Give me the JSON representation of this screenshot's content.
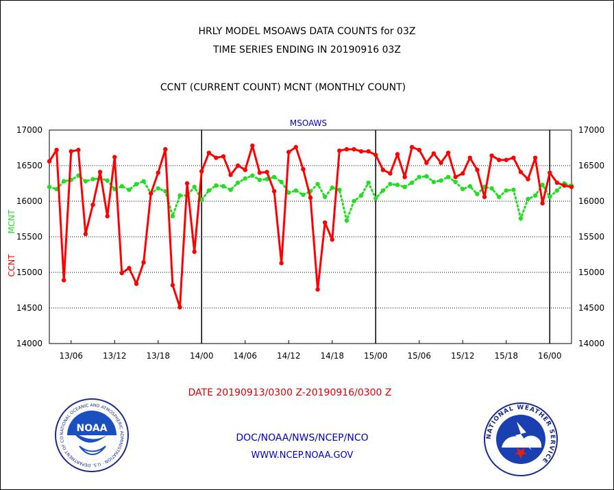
{
  "header": {
    "title_line1": "HRLY MODEL MSOAWS DATA COUNTS for 03Z",
    "title_line2": "TIME SERIES ENDING IN 20190916 03Z",
    "subtitle": "CCNT (CURRENT COUNT) MCNT (MONTHLY COUNT)"
  },
  "footer": {
    "date_range": "DATE 20190913/0300 Z-20190916/0300 Z",
    "org_path": "DOC/NOAA/NWS/NCEP/NCO",
    "website": "WWW.NCEP.NOAA.GOV"
  },
  "logos": {
    "noaa_text": "NOAA",
    "noaa_ring": "NATIONAL OCEANIC AND ATMOSPHERIC ADMINISTRATION · U.S. DEPARTMENT OF COMMERCE ·",
    "nws_ring": "NATIONAL WEATHER SERVICE"
  },
  "colors": {
    "ccnt": "#ff0000",
    "mcnt": "#22dd22",
    "label_blue": "#0000cc",
    "date_red": "#dd0000"
  },
  "chart_data": {
    "type": "line",
    "plot_label": "MSOAWS",
    "ylabel_red": "CCNT",
    "ylabel_green": "MCNT",
    "x_hours_start": 3,
    "x_step_hours": 1,
    "x_ticks": [
      {
        "hour": 6,
        "label": "13/06"
      },
      {
        "hour": 12,
        "label": "13/12"
      },
      {
        "hour": 18,
        "label": "13/18"
      },
      {
        "hour": 24,
        "label": "14/00"
      },
      {
        "hour": 30,
        "label": "14/06"
      },
      {
        "hour": 36,
        "label": "14/12"
      },
      {
        "hour": 42,
        "label": "14/18"
      },
      {
        "hour": 48,
        "label": "15/00"
      },
      {
        "hour": 54,
        "label": "15/06"
      },
      {
        "hour": 60,
        "label": "15/12"
      },
      {
        "hour": 66,
        "label": "15/18"
      },
      {
        "hour": 72,
        "label": "16/00"
      }
    ],
    "day_lines": [
      24,
      48,
      72
    ],
    "xlim": [
      3,
      75
    ],
    "ylim": [
      14000,
      17000
    ],
    "yticks": [
      14000,
      14500,
      15000,
      15500,
      16000,
      16500,
      17000
    ],
    "ytick_labels": [
      "14000",
      "14500",
      "15000",
      "15500",
      "16000",
      "16500",
      "17000"
    ],
    "grid": "horizontal dotted",
    "series": [
      {
        "name": "CCNT",
        "color": "#ff0000",
        "values": [
          16560,
          16720,
          14890,
          16700,
          16720,
          15540,
          15950,
          16410,
          15790,
          16620,
          14990,
          15060,
          14840,
          15140,
          16110,
          16400,
          16730,
          14820,
          14510,
          16250,
          15290,
          16420,
          16680,
          16610,
          16630,
          16370,
          16500,
          16440,
          16780,
          16400,
          16410,
          16140,
          15130,
          16690,
          16760,
          16450,
          16050,
          14760,
          15700,
          15460,
          16710,
          16730,
          16730,
          16700,
          16700,
          16650,
          16440,
          16390,
          16660,
          16340,
          16760,
          16720,
          16540,
          16670,
          16540,
          16680,
          16340,
          16390,
          16610,
          16440,
          16060,
          16640,
          16580,
          16580,
          16610,
          16410,
          16310,
          16610,
          15970,
          16400,
          16260,
          16220,
          16200
        ]
      },
      {
        "name": "MCNT",
        "color": "#22dd22",
        "values": [
          16200,
          16170,
          16280,
          16300,
          16360,
          16280,
          16310,
          16320,
          16290,
          16170,
          16210,
          16160,
          16240,
          16280,
          16110,
          16180,
          16140,
          15790,
          16080,
          16080,
          16200,
          16020,
          16150,
          16220,
          16210,
          16160,
          16260,
          16320,
          16360,
          16300,
          16310,
          16340,
          16270,
          16120,
          16150,
          16090,
          16140,
          16240,
          16060,
          16190,
          16160,
          15730,
          16000,
          16080,
          16260,
          16040,
          16150,
          16240,
          16230,
          16200,
          16260,
          16340,
          16350,
          16270,
          16290,
          16340,
          16270,
          16170,
          16210,
          16100,
          16200,
          16180,
          16060,
          16150,
          16160,
          15760,
          16030,
          16080,
          16230,
          16060,
          16150,
          16250,
          16220
        ]
      }
    ]
  }
}
